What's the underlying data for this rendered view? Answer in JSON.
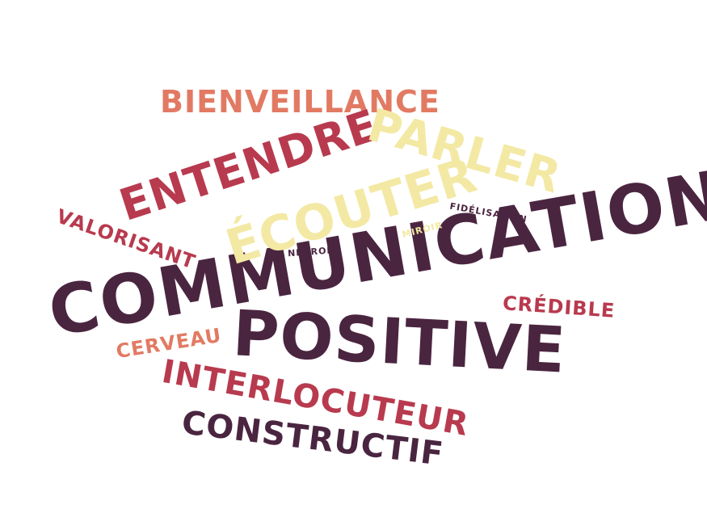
{
  "words": [
    {
      "id": "communication",
      "text": "COMMUNICATION",
      "color": "#4a2540"
    },
    {
      "id": "positive",
      "text": "POSITIVE",
      "color": "#4a2540"
    },
    {
      "id": "bienveillance",
      "text": "BIENVEILLANCE",
      "color": "#e27a63"
    },
    {
      "id": "entendre",
      "text": "ENTENDRE",
      "color": "#b83a4e"
    },
    {
      "id": "parler",
      "text": "PARLER",
      "color": "#f3e9a4"
    },
    {
      "id": "ecouter",
      "text": "ÉCOUTER",
      "color": "#f3e9a4"
    },
    {
      "id": "valorisant",
      "text": "VALORISANT",
      "color": "#b83a4e"
    },
    {
      "id": "fidelisation",
      "text": "FIDÉLISATION",
      "color": "#4a2540"
    },
    {
      "id": "miroir",
      "text": "MIROIR",
      "color": "#f3e9a4"
    },
    {
      "id": "neurone",
      "text": "NEURONE",
      "color": "#4a2540"
    },
    {
      "id": "credible",
      "text": "CRÉDIBLE",
      "color": "#b83a4e"
    },
    {
      "id": "cerveau",
      "text": "CERVEAU",
      "color": "#e27a63"
    },
    {
      "id": "interlocuteur",
      "text": "INTERLOCUTEUR",
      "color": "#b83a4e"
    },
    {
      "id": "constructif",
      "text": "CONSTRUCTIF",
      "color": "#4a2540"
    }
  ]
}
